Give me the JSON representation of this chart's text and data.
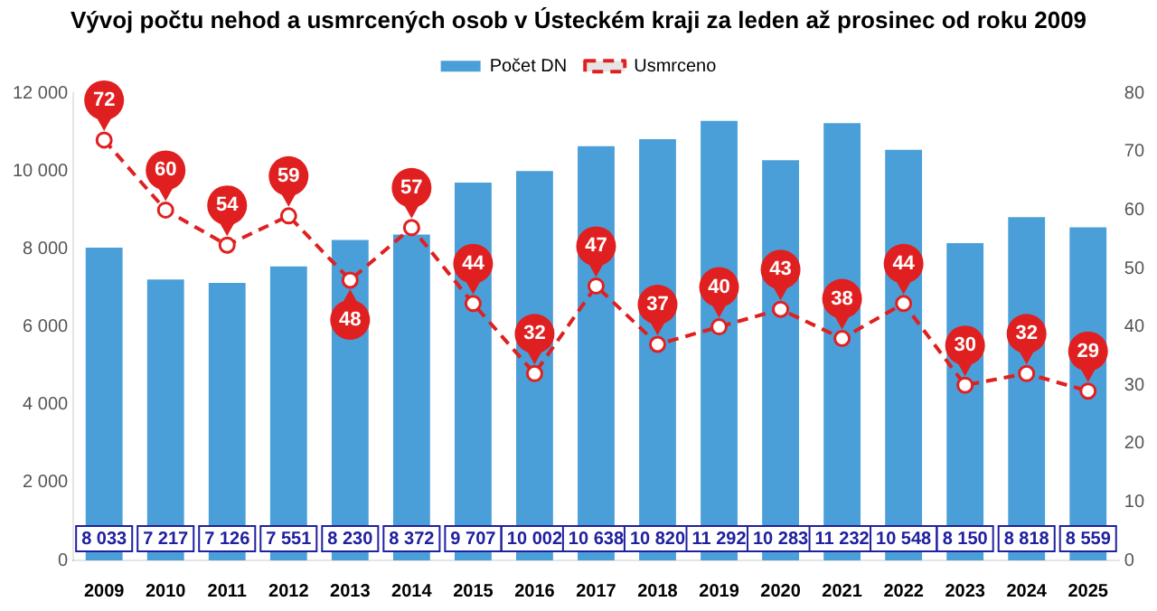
{
  "chart_data": {
    "type": "bar",
    "title": "Vývoj počtu nehod a usmrcených osob v Ústeckém kraji za leden až prosinec od roku 2009",
    "categories": [
      "2009",
      "2010",
      "2011",
      "2012",
      "2013",
      "2014",
      "2015",
      "2016",
      "2017",
      "2018",
      "2019",
      "2020",
      "2021",
      "2022",
      "2023",
      "2024",
      "2025"
    ],
    "series": [
      {
        "name": "Počet DN",
        "color": "#4a9fd8",
        "values": [
          8033,
          7217,
          7126,
          7551,
          8230,
          8372,
          9707,
          10002,
          10638,
          10820,
          11292,
          10283,
          11232,
          10548,
          8150,
          8818,
          8559
        ],
        "value_labels": [
          "8 033",
          "7 217",
          "7 126",
          "7 551",
          "8 230",
          "8 372",
          "9 707",
          "10 002",
          "10 638",
          "10 820",
          "11 292",
          "10 283",
          "11 232",
          "10 548",
          "8 150",
          "8 818",
          "8 559"
        ]
      },
      {
        "name": "Usmrceno",
        "type": "line",
        "axis": "y2",
        "color": "#e02020",
        "line_style": "dashed",
        "marker": "circle",
        "values": [
          72,
          60,
          54,
          59,
          48,
          57,
          44,
          32,
          47,
          37,
          40,
          43,
          38,
          44,
          30,
          32,
          29
        ],
        "value_labels": [
          "72",
          "60",
          "54",
          "59",
          "48",
          "57",
          "44",
          "32",
          "47",
          "37",
          "40",
          "43",
          "38",
          "44",
          "30",
          "32",
          "29"
        ]
      }
    ],
    "ylim": [
      0,
      12000
    ],
    "yticks": [
      0,
      {
        "value": 2000,
        "label": "2 000"
      },
      {
        "value": 4000,
        "label": "4 000"
      },
      {
        "value": 6000,
        "label": "6 000"
      },
      {
        "value": 8000,
        "label": "8 000"
      },
      {
        "value": 10000,
        "label": "10 000"
      },
      {
        "value": 12000,
        "label": "12 000"
      }
    ],
    "y2lim": [
      0,
      80
    ],
    "y2ticks": [
      0,
      10,
      20,
      30,
      40,
      50,
      60,
      70,
      80
    ],
    "legend": "top"
  }
}
